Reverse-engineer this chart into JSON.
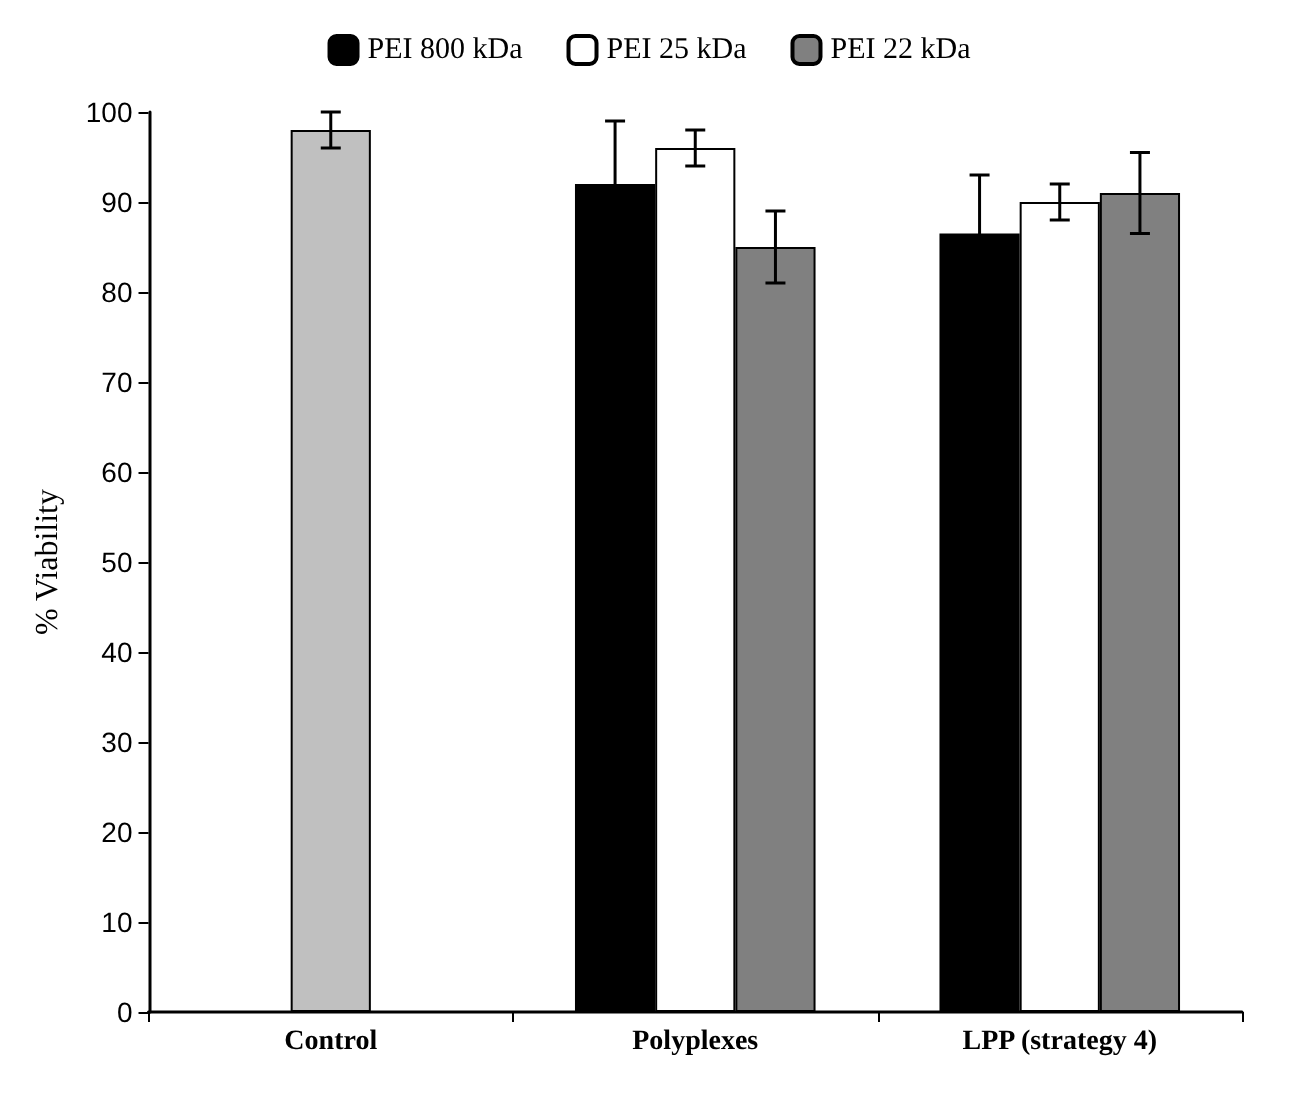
{
  "chart_data": {
    "type": "bar",
    "ylabel": "% Viability",
    "categories": [
      "Control",
      "Polyplexes",
      "LPP (strategy 4)"
    ],
    "series": [
      {
        "color": "#c0c0c0",
        "values": [
          98,
          null,
          null
        ],
        "errors": [
          2,
          null,
          null
        ]
      },
      {
        "name": "PEI 800 kDa",
        "color": "#000000",
        "values": [
          null,
          92,
          86.5
        ],
        "errors": [
          null,
          7,
          6.5
        ]
      },
      {
        "name": "PEI 25 kDa",
        "color": "#ffffff",
        "values": [
          null,
          96,
          90
        ],
        "errors": [
          null,
          2,
          2
        ]
      },
      {
        "name": "PEI 22 kDa",
        "color": "#808080",
        "values": [
          null,
          85,
          91
        ],
        "errors": [
          null,
          4,
          4.5
        ]
      }
    ],
    "ylim": [
      0,
      100
    ],
    "yticks": [
      0,
      10,
      20,
      30,
      40,
      50,
      60,
      70,
      80,
      90,
      100
    ],
    "grid": false,
    "legend": "top"
  }
}
